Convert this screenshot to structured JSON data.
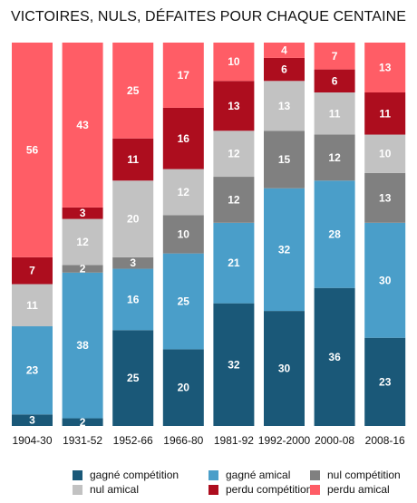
{
  "chart_data": {
    "type": "bar",
    "stacked": true,
    "normalized": true,
    "title": "VICTOIRES, NULS, DÉFAITES POUR CHAQUE CENTAINE",
    "xlabel": "",
    "ylabel": "",
    "ylim": [
      0,
      100
    ],
    "grid": false,
    "legend_position": "bottom",
    "categories": [
      "1904-30",
      "1931-52",
      "1952-66",
      "1966-80",
      "1981-92",
      "1992-2000",
      "2000-08",
      "2008-16"
    ],
    "series": [
      {
        "name": "gagné compétition",
        "color": "#1a5878",
        "values": [
          3,
          2,
          25,
          20,
          32,
          30,
          36,
          23
        ]
      },
      {
        "name": "gagné amical",
        "color": "#4a9ec9",
        "values": [
          23,
          38,
          16,
          25,
          21,
          32,
          28,
          30
        ]
      },
      {
        "name": "nul compétition",
        "color": "#808080",
        "values": [
          0,
          2,
          3,
          10,
          12,
          15,
          12,
          13
        ]
      },
      {
        "name": "nul amical",
        "color": "#c2c2c2",
        "values": [
          11,
          12,
          20,
          12,
          12,
          13,
          11,
          10
        ]
      },
      {
        "name": "perdu compétition",
        "color": "#ad0d1e",
        "values": [
          7,
          3,
          11,
          16,
          13,
          6,
          6,
          11
        ]
      },
      {
        "name": "perdu amical",
        "color": "#ff5d66",
        "values": [
          56,
          43,
          25,
          17,
          10,
          4,
          7,
          13
        ]
      }
    ]
  }
}
